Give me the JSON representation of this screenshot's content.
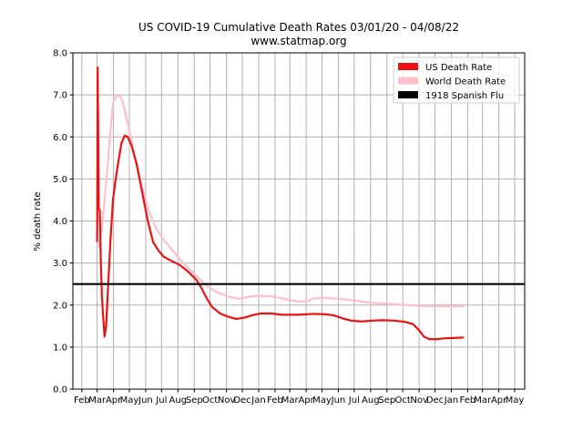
{
  "chart_data": {
    "type": "line",
    "title": "US COVID-19 Cumulative Death Rates 03/01/20 - 04/08/22",
    "subtitle": "www.statmap.org",
    "xlabel": "",
    "ylabel": "% death rate",
    "ylim": [
      0,
      8
    ],
    "y_ticks": [
      "0.0",
      "1.0",
      "2.0",
      "3.0",
      "4.0",
      "5.0",
      "6.0",
      "7.0",
      "8.0"
    ],
    "x_ticks": [
      "Feb",
      "Mar",
      "Apr",
      "May",
      "Jun",
      "Jul",
      "Aug",
      "Sep",
      "Oct",
      "Nov",
      "Dec",
      "Jan",
      "Feb",
      "Mar",
      "Apr",
      "May",
      "Jun",
      "Jul",
      "Aug",
      "Sep",
      "Oct",
      "Nov",
      "Dec",
      "Jan",
      "Feb",
      "Mar",
      "Apr",
      "May"
    ],
    "x_tick_dates": [
      "2020-02-01",
      "2020-03-01",
      "2020-04-01",
      "2020-05-01",
      "2020-06-01",
      "2020-07-01",
      "2020-08-01",
      "2020-09-01",
      "2020-10-01",
      "2020-11-01",
      "2020-12-01",
      "2021-01-01",
      "2021-02-01",
      "2021-03-01",
      "2021-04-01",
      "2021-05-01",
      "2021-06-01",
      "2021-07-01",
      "2021-08-01",
      "2021-09-01",
      "2021-10-01",
      "2021-11-01",
      "2021-12-01",
      "2022-01-01",
      "2022-02-01",
      "2022-03-01",
      "2022-04-01",
      "2022-05-01"
    ],
    "xlim": [
      "2020-01-15",
      "2022-05-20"
    ],
    "grid": true,
    "legend_position": "top-right",
    "series": [
      {
        "name": "US Death Rate",
        "color": "#ee1111",
        "points": [
          [
            "2020-03-01",
            3.5
          ],
          [
            "2020-03-02",
            7.65
          ],
          [
            "2020-03-03",
            6.0
          ],
          [
            "2020-03-04",
            4.3
          ],
          [
            "2020-03-06",
            4.25
          ],
          [
            "2020-03-08",
            3.0
          ],
          [
            "2020-03-10",
            2.2
          ],
          [
            "2020-03-12",
            1.8
          ],
          [
            "2020-03-15",
            1.25
          ],
          [
            "2020-03-18",
            1.5
          ],
          [
            "2020-03-22",
            2.5
          ],
          [
            "2020-03-26",
            3.5
          ],
          [
            "2020-03-31",
            4.5
          ],
          [
            "2020-04-04",
            4.9
          ],
          [
            "2020-04-10",
            5.4
          ],
          [
            "2020-04-16",
            5.85
          ],
          [
            "2020-04-22",
            6.03
          ],
          [
            "2020-04-28",
            6.0
          ],
          [
            "2020-05-05",
            5.8
          ],
          [
            "2020-05-15",
            5.35
          ],
          [
            "2020-05-25",
            4.7
          ],
          [
            "2020-06-05",
            4.0
          ],
          [
            "2020-06-15",
            3.5
          ],
          [
            "2020-06-25",
            3.3
          ],
          [
            "2020-07-05",
            3.15
          ],
          [
            "2020-07-20",
            3.05
          ],
          [
            "2020-08-05",
            2.95
          ],
          [
            "2020-08-20",
            2.8
          ],
          [
            "2020-09-05",
            2.6
          ],
          [
            "2020-09-15",
            2.4
          ],
          [
            "2020-09-25",
            2.15
          ],
          [
            "2020-10-05",
            1.95
          ],
          [
            "2020-10-20",
            1.8
          ],
          [
            "2020-11-05",
            1.72
          ],
          [
            "2020-11-20",
            1.67
          ],
          [
            "2020-12-05",
            1.7
          ],
          [
            "2020-12-20",
            1.76
          ],
          [
            "2021-01-05",
            1.8
          ],
          [
            "2021-01-25",
            1.8
          ],
          [
            "2021-02-15",
            1.77
          ],
          [
            "2021-03-15",
            1.77
          ],
          [
            "2021-04-15",
            1.79
          ],
          [
            "2021-05-10",
            1.78
          ],
          [
            "2021-05-25",
            1.75
          ],
          [
            "2021-06-10",
            1.68
          ],
          [
            "2021-06-25",
            1.63
          ],
          [
            "2021-07-15",
            1.61
          ],
          [
            "2021-08-05",
            1.63
          ],
          [
            "2021-08-25",
            1.64
          ],
          [
            "2021-09-15",
            1.63
          ],
          [
            "2021-10-05",
            1.6
          ],
          [
            "2021-10-20",
            1.55
          ],
          [
            "2021-11-01",
            1.4
          ],
          [
            "2021-11-10",
            1.25
          ],
          [
            "2021-11-20",
            1.19
          ],
          [
            "2021-12-05",
            1.19
          ],
          [
            "2021-12-20",
            1.21
          ],
          [
            "2022-01-10",
            1.22
          ],
          [
            "2022-01-25",
            1.23
          ]
        ]
      },
      {
        "name": "World Death Rate",
        "color": "#ffc0cb",
        "points": [
          [
            "2020-03-01",
            3.4
          ],
          [
            "2020-03-05",
            3.4
          ],
          [
            "2020-03-10",
            3.8
          ],
          [
            "2020-03-15",
            4.5
          ],
          [
            "2020-03-20",
            5.2
          ],
          [
            "2020-03-26",
            6.1
          ],
          [
            "2020-03-31",
            6.8
          ],
          [
            "2020-04-05",
            6.95
          ],
          [
            "2020-04-12",
            7.0
          ],
          [
            "2020-04-18",
            6.85
          ],
          [
            "2020-04-25",
            6.5
          ],
          [
            "2020-05-05",
            5.9
          ],
          [
            "2020-05-15",
            5.3
          ],
          [
            "2020-05-25",
            4.8
          ],
          [
            "2020-06-05",
            4.3
          ],
          [
            "2020-06-20",
            3.85
          ],
          [
            "2020-07-05",
            3.55
          ],
          [
            "2020-07-25",
            3.25
          ],
          [
            "2020-08-15",
            2.95
          ],
          [
            "2020-09-05",
            2.7
          ],
          [
            "2020-09-25",
            2.45
          ],
          [
            "2020-10-15",
            2.3
          ],
          [
            "2020-11-05",
            2.2
          ],
          [
            "2020-11-25",
            2.15
          ],
          [
            "2020-12-15",
            2.2
          ],
          [
            "2021-01-05",
            2.22
          ],
          [
            "2021-01-30",
            2.2
          ],
          [
            "2021-02-25",
            2.13
          ],
          [
            "2021-03-20",
            2.08
          ],
          [
            "2021-04-05",
            2.1
          ],
          [
            "2021-04-15",
            2.16
          ],
          [
            "2021-05-10",
            2.17
          ],
          [
            "2021-06-10",
            2.14
          ],
          [
            "2021-07-05",
            2.1
          ],
          [
            "2021-08-05",
            2.05
          ],
          [
            "2021-09-05",
            2.03
          ],
          [
            "2021-10-05",
            2.0
          ],
          [
            "2021-11-05",
            1.98
          ],
          [
            "2021-12-05",
            1.97
          ],
          [
            "2022-01-10",
            1.97
          ],
          [
            "2022-01-25",
            1.97
          ]
        ]
      },
      {
        "name": "1918 Spanish Flu",
        "color": "#000000",
        "points": [
          [
            "2020-01-15",
            2.5
          ],
          [
            "2022-05-20",
            2.5
          ]
        ]
      }
    ]
  }
}
